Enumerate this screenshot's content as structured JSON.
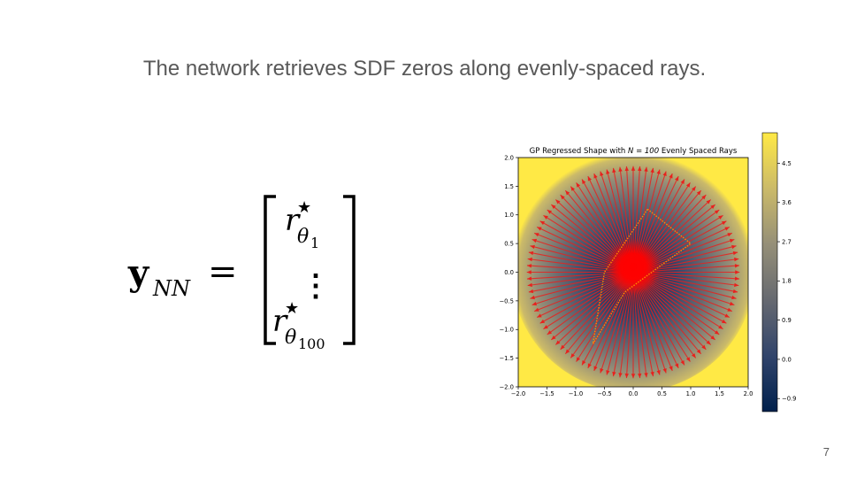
{
  "slide": {
    "title": "The network retrieves SDF zeros along evenly-spaced rays.",
    "page_number": "7"
  },
  "equation": {
    "lhs_symbol": "y",
    "lhs_subscript": "NN",
    "equals": "=",
    "entries": [
      {
        "symbol": "r",
        "superscript": "★",
        "subscript": "θ",
        "subsub": "1"
      },
      {
        "symbol": "⋮"
      },
      {
        "symbol": "r",
        "superscript": "★",
        "subscript": "θ",
        "subsub": "100"
      }
    ]
  },
  "chart_data": {
    "type": "heatmap",
    "title_prefix": "GP Regressed Shape with ",
    "title_math": "N = 100",
    "title_suffix": " Evenly Spaced Rays",
    "xlim": [
      -2.0,
      2.0
    ],
    "ylim": [
      -2.0,
      2.0
    ],
    "x_ticks": [
      "−2.0",
      "−1.5",
      "−1.0",
      "−0.5",
      "0.0",
      "0.5",
      "1.0",
      "1.5",
      "2.0"
    ],
    "y_ticks": [
      "2.0",
      "1.5",
      "1.0",
      "0.5",
      "0.0",
      "−0.5",
      "−1.0",
      "−1.5",
      "−2.0"
    ],
    "x_tick_values": [
      -2.0,
      -1.5,
      -1.0,
      -0.5,
      0.0,
      0.5,
      1.0,
      1.5,
      2.0
    ],
    "y_tick_values": [
      2.0,
      1.5,
      1.0,
      0.5,
      0.0,
      -0.5,
      -1.0,
      -1.5,
      -2.0
    ],
    "colorbar": {
      "range": [
        -1.2,
        5.2
      ],
      "ticks": [
        "4.5",
        "3.6",
        "2.7",
        "1.8",
        "0.9",
        "0.0",
        "−0.9"
      ],
      "tick_values": [
        4.5,
        3.6,
        2.7,
        1.8,
        0.9,
        0.0,
        -0.9
      ],
      "colors": [
        "#00204c",
        "#31446b",
        "#666970",
        "#958f78",
        "#cbba69",
        "#ffe945"
      ]
    },
    "rays": {
      "count": 100,
      "length": 1.85,
      "color": "#e8211d"
    },
    "center_blob": {
      "x": 0.0,
      "y": 0.1,
      "color": "#ff0000"
    },
    "shape_polygon": [
      [
        0.25,
        1.1
      ],
      [
        1.0,
        0.5
      ],
      [
        -0.15,
        -0.35
      ],
      [
        -0.7,
        -1.25
      ],
      [
        -0.5,
        0.0
      ]
    ],
    "shape_color": "#ff8c00"
  }
}
